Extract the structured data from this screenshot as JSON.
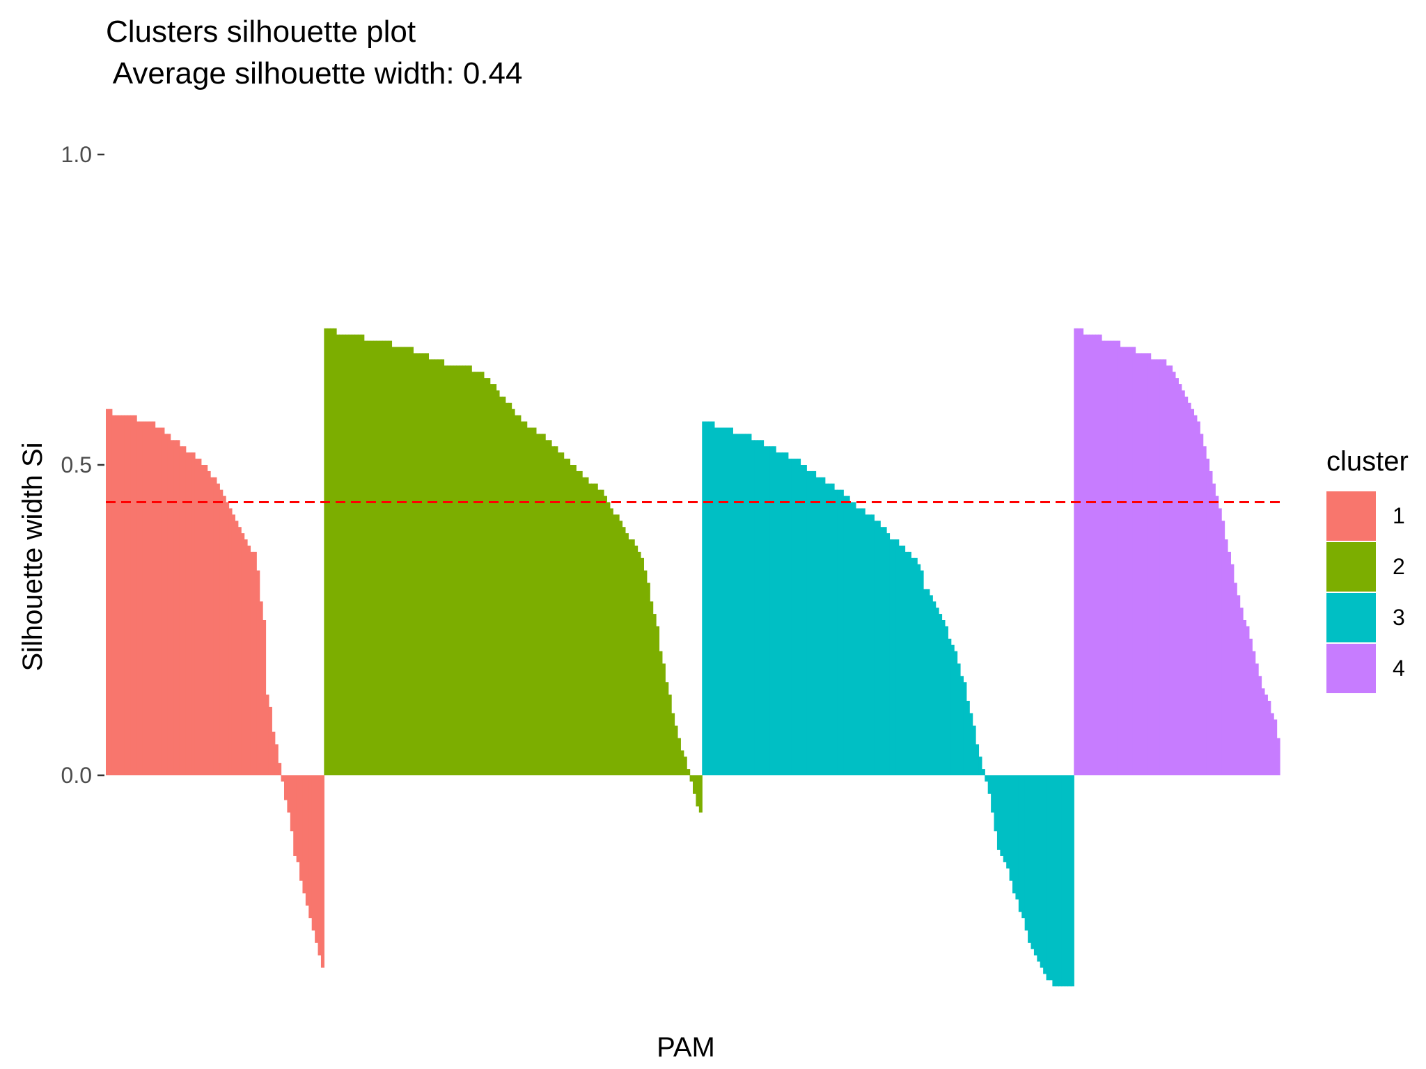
{
  "chart_data": {
    "type": "bar",
    "title": "Clusters silhouette plot",
    "subtitle": " Average silhouette width: 0.44",
    "xlabel": "PAM",
    "ylabel": "Silhouette width Si",
    "ylim": [
      -0.34,
      1.0
    ],
    "yticks": [
      {
        "value": 0.0,
        "label": "0.0"
      },
      {
        "value": 0.5,
        "label": "0.5"
      },
      {
        "value": 1.0,
        "label": "1.0"
      }
    ],
    "grid": false,
    "average_line": {
      "value": 0.44,
      "color": "#ff0000",
      "style": "dashed"
    },
    "legend": {
      "title": "cluster",
      "position": "right"
    },
    "series": [
      {
        "name": "1",
        "color": "#f8766d",
        "values": [
          0.59,
          0.59,
          0.58,
          0.58,
          0.58,
          0.58,
          0.58,
          0.58,
          0.58,
          0.58,
          0.57,
          0.57,
          0.57,
          0.57,
          0.57,
          0.57,
          0.56,
          0.56,
          0.56,
          0.55,
          0.55,
          0.54,
          0.54,
          0.54,
          0.53,
          0.53,
          0.52,
          0.52,
          0.52,
          0.51,
          0.51,
          0.5,
          0.5,
          0.49,
          0.48,
          0.48,
          0.47,
          0.46,
          0.45,
          0.44,
          0.43,
          0.42,
          0.41,
          0.4,
          0.39,
          0.38,
          0.37,
          0.36,
          0.36,
          0.33,
          0.28,
          0.25,
          0.13,
          0.11,
          0.07,
          0.05,
          0.02,
          -0.01,
          -0.04,
          -0.06,
          -0.09,
          -0.13,
          -0.14,
          -0.17,
          -0.19,
          -0.21,
          -0.23,
          -0.25,
          -0.27,
          -0.29,
          -0.31
        ]
      },
      {
        "name": "2",
        "color": "#7cae00",
        "values": [
          0.72,
          0.72,
          0.72,
          0.72,
          0.71,
          0.71,
          0.71,
          0.71,
          0.71,
          0.71,
          0.71,
          0.71,
          0.71,
          0.7,
          0.7,
          0.7,
          0.7,
          0.7,
          0.7,
          0.7,
          0.7,
          0.7,
          0.69,
          0.69,
          0.69,
          0.69,
          0.69,
          0.69,
          0.69,
          0.68,
          0.68,
          0.68,
          0.68,
          0.68,
          0.67,
          0.67,
          0.67,
          0.67,
          0.67,
          0.66,
          0.66,
          0.66,
          0.66,
          0.66,
          0.66,
          0.66,
          0.66,
          0.66,
          0.65,
          0.65,
          0.65,
          0.65,
          0.64,
          0.64,
          0.63,
          0.63,
          0.62,
          0.61,
          0.61,
          0.6,
          0.6,
          0.59,
          0.58,
          0.58,
          0.57,
          0.57,
          0.56,
          0.56,
          0.56,
          0.55,
          0.55,
          0.55,
          0.54,
          0.54,
          0.53,
          0.53,
          0.52,
          0.52,
          0.51,
          0.51,
          0.5,
          0.5,
          0.49,
          0.49,
          0.48,
          0.48,
          0.47,
          0.47,
          0.47,
          0.46,
          0.46,
          0.45,
          0.44,
          0.43,
          0.42,
          0.42,
          0.41,
          0.4,
          0.39,
          0.38,
          0.38,
          0.37,
          0.36,
          0.35,
          0.33,
          0.31,
          0.28,
          0.26,
          0.24,
          0.2,
          0.18,
          0.15,
          0.13,
          0.1,
          0.08,
          0.06,
          0.04,
          0.03,
          0.01,
          -0.01,
          -0.03,
          -0.05,
          -0.06
        ]
      },
      {
        "name": "3",
        "color": "#00bfc4",
        "values": [
          0.57,
          0.57,
          0.57,
          0.57,
          0.56,
          0.56,
          0.56,
          0.56,
          0.56,
          0.56,
          0.55,
          0.55,
          0.55,
          0.55,
          0.55,
          0.55,
          0.54,
          0.54,
          0.54,
          0.54,
          0.53,
          0.53,
          0.53,
          0.53,
          0.52,
          0.52,
          0.52,
          0.52,
          0.51,
          0.51,
          0.51,
          0.51,
          0.5,
          0.5,
          0.49,
          0.49,
          0.49,
          0.48,
          0.48,
          0.48,
          0.47,
          0.47,
          0.47,
          0.46,
          0.46,
          0.46,
          0.45,
          0.45,
          0.44,
          0.44,
          0.43,
          0.43,
          0.43,
          0.42,
          0.42,
          0.42,
          0.41,
          0.41,
          0.4,
          0.4,
          0.39,
          0.38,
          0.38,
          0.38,
          0.37,
          0.37,
          0.36,
          0.36,
          0.35,
          0.35,
          0.34,
          0.33,
          0.3,
          0.3,
          0.29,
          0.28,
          0.27,
          0.26,
          0.25,
          0.24,
          0.22,
          0.21,
          0.2,
          0.18,
          0.16,
          0.15,
          0.12,
          0.1,
          0.08,
          0.05,
          0.03,
          0.01,
          -0.01,
          -0.03,
          -0.06,
          -0.09,
          -0.12,
          -0.13,
          -0.14,
          -0.15,
          -0.17,
          -0.19,
          -0.2,
          -0.22,
          -0.23,
          -0.25,
          -0.27,
          -0.28,
          -0.29,
          -0.3,
          -0.31,
          -0.32,
          -0.33,
          -0.33,
          -0.34,
          -0.34,
          -0.34,
          -0.34,
          -0.34,
          -0.34,
          -0.34
        ]
      },
      {
        "name": "4",
        "color": "#c77cff",
        "values": [
          0.72,
          0.72,
          0.72,
          0.71,
          0.71,
          0.71,
          0.71,
          0.71,
          0.71,
          0.7,
          0.7,
          0.7,
          0.7,
          0.7,
          0.7,
          0.69,
          0.69,
          0.69,
          0.69,
          0.69,
          0.68,
          0.68,
          0.68,
          0.68,
          0.68,
          0.67,
          0.67,
          0.67,
          0.67,
          0.67,
          0.66,
          0.66,
          0.65,
          0.64,
          0.63,
          0.62,
          0.61,
          0.6,
          0.59,
          0.58,
          0.57,
          0.55,
          0.53,
          0.51,
          0.49,
          0.47,
          0.45,
          0.43,
          0.41,
          0.38,
          0.36,
          0.34,
          0.31,
          0.29,
          0.27,
          0.25,
          0.24,
          0.22,
          0.2,
          0.18,
          0.16,
          0.14,
          0.13,
          0.12,
          0.1,
          0.09,
          0.06
        ]
      }
    ]
  }
}
